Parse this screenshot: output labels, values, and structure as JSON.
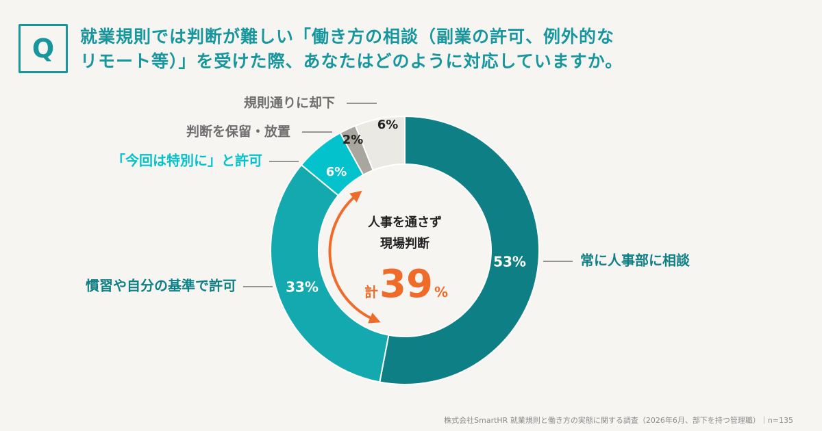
{
  "question": {
    "badge": "Q",
    "line1": "就業規則では判断が難しい「働き方の相談（副業の許可、例外的な",
    "line2": "リモート等）」を受けた際、あなたはどのように対応していますか。"
  },
  "chart_data": {
    "type": "pie",
    "title": "",
    "slices": [
      {
        "label": "常に人事部に相談",
        "value": 53,
        "value_label": "53%",
        "color": "#0e7f85",
        "label_color": "#0e7f85"
      },
      {
        "label": "慣習や自分の基準で許可",
        "value": 33,
        "value_label": "33%",
        "color": "#13a9ae",
        "label_color": "#0e7f85"
      },
      {
        "label": "「今回は特別に」と許可",
        "value": 6,
        "value_label": "6%",
        "color": "#04c2cc",
        "label_color": "#04c2cc"
      },
      {
        "label": "判断を保留・放置",
        "value": 2,
        "value_label": "2%",
        "color": "#a9a69f",
        "label_color": "#6f6f6f"
      },
      {
        "label": "規則通りに却下",
        "value": 6,
        "value_label": "6%",
        "color": "#ebe9e3",
        "label_color": "#6f6f6f"
      }
    ]
  },
  "center": {
    "line1": "人事を通さず",
    "line2": "現場判断",
    "total_prefix": "計",
    "total_value": "39",
    "total_suffix": "%"
  },
  "colors": {
    "accent": "#17969e",
    "highlight": "#ef6b2a",
    "background": "#f6f5f2"
  },
  "footer": "株式会社SmartHR 就業規則と働き方の実態に関する調査（2026年6月、部下を持つ管理職）｜n=135"
}
